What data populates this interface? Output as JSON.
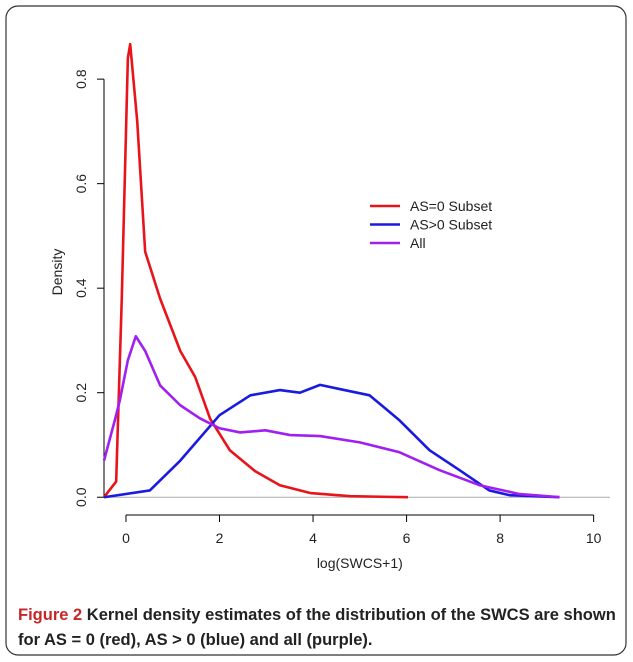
{
  "chart_data": {
    "type": "line",
    "xlabel": "log(SWCS+1)",
    "ylabel": "Density",
    "xlim": [
      -0.47,
      10.35
    ],
    "ylim": [
      -0.034,
      0.894
    ],
    "xticks": [
      0,
      2,
      4,
      6,
      8,
      10
    ],
    "yticks": [
      {
        "value": 0,
        "label": "0.0"
      },
      0.2,
      0.4,
      0.6,
      0.8
    ],
    "series": [
      {
        "name": "AS=0 Subset",
        "color": "#e8141a",
        "x": [
          -0.47,
          -0.21,
          -0.09,
          0.04,
          0.09,
          0.24,
          0.41,
          0.73,
          1.16,
          1.48,
          1.8,
          2.22,
          2.76,
          3.29,
          3.94,
          4.8,
          6.03
        ],
        "values": [
          0,
          0.03,
          0.38,
          0.84,
          0.867,
          0.72,
          0.47,
          0.38,
          0.28,
          0.23,
          0.15,
          0.09,
          0.05,
          0.023,
          0.008,
          0.002,
          0
        ]
      },
      {
        "name": "AS>0 Subset",
        "color": "#1a1ae0",
        "x": [
          -0.47,
          0.51,
          1.16,
          2,
          2.66,
          3.29,
          3.72,
          4.15,
          4.57,
          5.21,
          5.85,
          6.49,
          7.13,
          7.77,
          8.2,
          9.27
        ],
        "values": [
          0,
          0.013,
          0.07,
          0.157,
          0.195,
          0.205,
          0.2,
          0.215,
          0.207,
          0.195,
          0.147,
          0.09,
          0.052,
          0.013,
          0.004,
          0
        ]
      },
      {
        "name": "All",
        "color": "#a020f0",
        "x": [
          -0.47,
          -0.24,
          -0.13,
          0.04,
          0.21,
          0.41,
          0.73,
          1.16,
          1.58,
          2,
          2.44,
          2.98,
          3.51,
          4.15,
          5,
          5.85,
          6.7,
          7.56,
          8.42,
          9.27
        ],
        "values": [
          0.07,
          0.147,
          0.186,
          0.262,
          0.308,
          0.28,
          0.214,
          0.176,
          0.151,
          0.132,
          0.124,
          0.128,
          0.119,
          0.117,
          0.105,
          0.086,
          0.052,
          0.023,
          0.006,
          0
        ]
      }
    ],
    "caption_label": "Figure 2",
    "caption": "Kernel density estimates of the distribution of the SWCS are shown for AS = 0 (red), AS > 0 (blue) and all (purple)."
  }
}
